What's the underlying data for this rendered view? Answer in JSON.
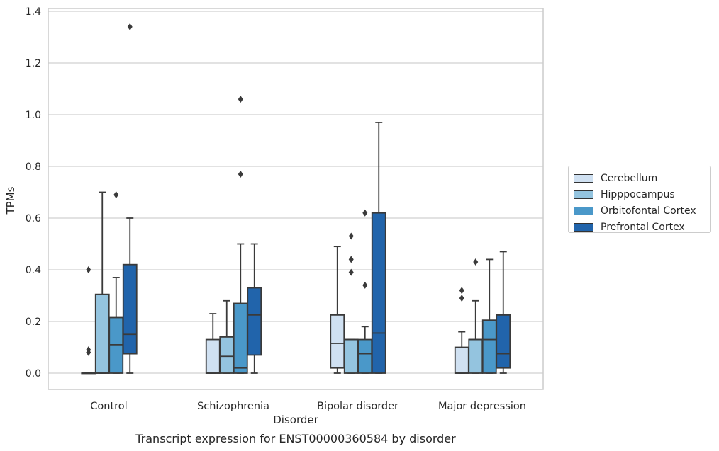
{
  "chart_data": {
    "type": "box",
    "title": "Transcript expression for ENST00000360584 by disorder",
    "xlabel": "Disorder",
    "ylabel": "TPMs",
    "ylim": [
      -0.062,
      1.41
    ],
    "yticks": [
      "0.0",
      "0.2",
      "0.4",
      "0.6",
      "0.8",
      "1.0",
      "1.2",
      "1.4"
    ],
    "grid": "horizontal",
    "legend_position": "right",
    "categories": [
      "Control",
      "Schizophrenia",
      "Bipolar disorder",
      "Major depression"
    ],
    "series": [
      {
        "name": "Cerebellum",
        "color": "#d0e1f2",
        "boxes": [
          {
            "min": 0,
            "q1": 0,
            "median": 0,
            "q3": 0,
            "max": 0,
            "outliers": []
          },
          {
            "min": 0,
            "q1": 0,
            "median": 0,
            "q3": 0.13,
            "max": 0.23,
            "outliers": []
          },
          {
            "min": 0,
            "q1": 0.02,
            "median": 0.115,
            "q3": 0.225,
            "max": 0.49,
            "outliers": []
          },
          {
            "min": 0,
            "q1": 0,
            "median": 0,
            "q3": 0.1,
            "max": 0.16,
            "outliers": [
              0.29,
              0.32
            ]
          }
        ]
      },
      {
        "name": "Hipppocampus",
        "color": "#94c4df",
        "boxes": [
          {
            "min": 0,
            "q1": 0,
            "median": 0,
            "q3": 0.305,
            "max": 0.7,
            "outliers": []
          },
          {
            "min": 0,
            "q1": 0,
            "median": 0.065,
            "q3": 0.14,
            "max": 0.28,
            "outliers": []
          },
          {
            "min": 0,
            "q1": 0,
            "median": 0.13,
            "q3": 0.13,
            "max": 0.13,
            "outliers": []
          },
          {
            "min": 0,
            "q1": 0,
            "median": 0.13,
            "q3": 0.13,
            "max": 0.28,
            "outliers": [
              0.43
            ]
          }
        ]
      },
      {
        "name": "Orbitofontal Cortex",
        "color": "#4a98c9",
        "boxes": [
          {
            "min": 0,
            "q1": 0,
            "median": 0.11,
            "q3": 0.215,
            "max": 0.37,
            "outliers": [
              0.69
            ]
          },
          {
            "min": 0,
            "q1": 0,
            "median": 0.02,
            "q3": 0.27,
            "max": 0.5,
            "outliers": [
              0.77,
              1.06
            ]
          },
          {
            "min": 0,
            "q1": 0,
            "median": 0.075,
            "q3": 0.13,
            "max": 0.18,
            "outliers": [
              0.34,
              0.62
            ]
          },
          {
            "min": 0,
            "q1": 0,
            "median": 0.13,
            "q3": 0.205,
            "max": 0.44,
            "outliers": []
          }
        ]
      },
      {
        "name": "Prefrontal Cortex",
        "color": "#2164ab",
        "boxes": [
          {
            "min": 0,
            "q1": 0.075,
            "median": 0.15,
            "q3": 0.42,
            "max": 0.6,
            "outliers": [
              1.34
            ]
          },
          {
            "min": 0,
            "q1": 0.07,
            "median": 0.225,
            "q3": 0.33,
            "max": 0.5,
            "outliers": []
          },
          {
            "min": 0,
            "q1": 0,
            "median": 0.155,
            "q3": 0.62,
            "max": 0.97,
            "outliers": []
          },
          {
            "min": 0,
            "q1": 0.02,
            "median": 0.075,
            "q3": 0.225,
            "max": 0.47,
            "outliers": []
          }
        ]
      }
    ],
    "extra_outliers": [
      {
        "category": 0,
        "series": 0,
        "values": [
          0.4,
          0.09,
          0.08
        ]
      },
      {
        "category": 2,
        "series": 1,
        "values": [
          0.53,
          0.44,
          0.39
        ]
      }
    ]
  }
}
